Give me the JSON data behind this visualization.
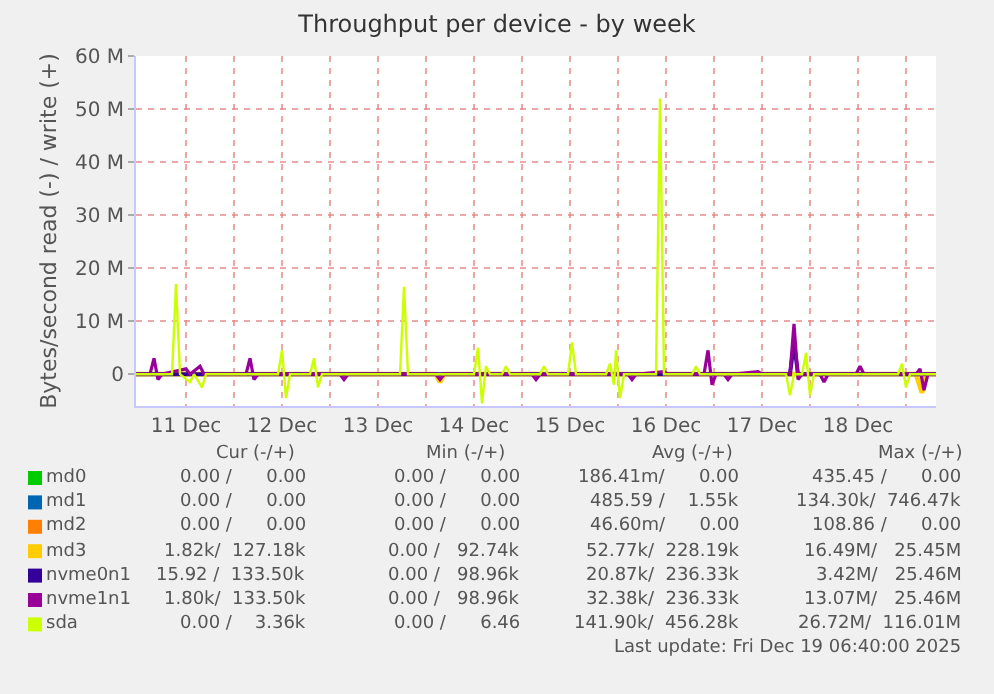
{
  "chart_data": {
    "type": "line",
    "title": "Throughput per device - by week",
    "ylabel": "Bytes/second read (-) / write (+)",
    "xlim": [
      "2025-12-10T23:30",
      "2025-12-19T07:30"
    ],
    "xticks": [
      {
        "value": "2025-12-11T00:00",
        "label": null
      },
      {
        "value": "2025-12-11T12:00",
        "label": "11 Dec"
      },
      {
        "value": "2025-12-12T00:00",
        "label": null
      },
      {
        "value": "2025-12-12T12:00",
        "label": "12 Dec"
      },
      {
        "value": "2025-12-13T00:00",
        "label": null
      },
      {
        "value": "2025-12-13T12:00",
        "label": "13 Dec"
      },
      {
        "value": "2025-12-14T00:00",
        "label": null
      },
      {
        "value": "2025-12-14T12:00",
        "label": "14 Dec"
      },
      {
        "value": "2025-12-15T00:00",
        "label": null
      },
      {
        "value": "2025-12-15T12:00",
        "label": "15 Dec"
      },
      {
        "value": "2025-12-16T00:00",
        "label": null
      },
      {
        "value": "2025-12-16T12:00",
        "label": "16 Dec"
      },
      {
        "value": "2025-12-17T00:00",
        "label": null
      },
      {
        "value": "2025-12-17T12:00",
        "label": "17 Dec"
      },
      {
        "value": "2025-12-18T00:00",
        "label": null
      },
      {
        "value": "2025-12-18T12:00",
        "label": "18 Dec"
      },
      {
        "value": "2025-12-19T00:00",
        "label": null
      }
    ],
    "ylim": [
      -6000000,
      60000000
    ],
    "yticks": [
      {
        "value": 0,
        "label": "0"
      },
      {
        "value": 10000000,
        "label": "10 M"
      },
      {
        "value": 20000000,
        "label": "20 M"
      },
      {
        "value": 30000000,
        "label": "30 M"
      },
      {
        "value": 40000000,
        "label": "40 M"
      },
      {
        "value": 50000000,
        "label": "50 M"
      },
      {
        "value": 60000000,
        "label": "60 M"
      }
    ],
    "grid": true,
    "legend": "bottom left",
    "marker": "none",
    "line_style": "solid",
    "series": [
      {
        "name": "md0",
        "color": "#00cc00"
      },
      {
        "name": "md1",
        "color": "#0066b3"
      },
      {
        "name": "md2",
        "color": "#ff8000"
      },
      {
        "name": "md3",
        "color": "#ffcc00",
        "x": [
          "2025-12-10T23:30",
          "2025-12-14T02:30",
          "2025-12-14T03:30",
          "2025-12-14T04:30",
          "2025-12-19T02:30",
          "2025-12-19T04:00",
          "2025-12-19T05:00",
          "2025-12-19T07:30"
        ],
        "values": [
          0,
          0,
          -1500000,
          0,
          0,
          -3500000,
          0,
          0
        ]
      },
      {
        "name": "nvme0n1",
        "color": "#330099",
        "x": [
          "2025-12-10T23:30",
          "2025-12-17T19:00",
          "2025-12-17T20:00",
          "2025-12-17T21:00",
          "2025-12-19T07:30"
        ],
        "values": [
          0,
          0,
          6000000,
          0,
          0
        ]
      },
      {
        "name": "nvme1n1",
        "color": "#990099",
        "x": [
          "2025-12-10T23:30",
          "2025-12-11T03:00",
          "2025-12-11T04:00",
          "2025-12-11T05:00",
          "2025-12-11T06:00",
          "2025-12-11T12:00",
          "2025-12-11T13:00",
          "2025-12-11T15:30",
          "2025-12-11T16:30",
          "2025-12-12T03:00",
          "2025-12-12T04:00",
          "2025-12-12T05:00",
          "2025-12-12T06:00",
          "2025-12-13T02:30",
          "2025-12-13T03:30",
          "2025-12-13T04:30",
          "2025-12-14T02:30",
          "2025-12-14T03:30",
          "2025-12-14T04:30",
          "2025-12-15T02:30",
          "2025-12-15T03:30",
          "2025-12-15T04:30",
          "2025-12-16T02:30",
          "2025-12-16T03:30",
          "2025-12-16T04:30",
          "2025-12-16T11:30",
          "2025-12-16T12:30",
          "2025-12-16T21:30",
          "2025-12-16T22:30",
          "2025-12-16T23:30",
          "2025-12-17T00:30",
          "2025-12-17T02:30",
          "2025-12-17T03:30",
          "2025-12-17T04:30",
          "2025-12-17T11:00",
          "2025-12-17T12:00",
          "2025-12-17T19:00",
          "2025-12-17T20:00",
          "2025-12-17T21:00",
          "2025-12-17T22:00",
          "2025-12-18T02:30",
          "2025-12-18T03:30",
          "2025-12-18T04:30",
          "2025-12-18T11:30",
          "2025-12-18T12:30",
          "2025-12-18T13:30",
          "2025-12-19T02:30",
          "2025-12-19T03:30",
          "2025-12-19T04:30",
          "2025-12-19T05:30",
          "2025-12-19T07:30"
        ],
        "values": [
          0,
          0,
          3000000,
          -1000000,
          0,
          1000000,
          0,
          1500000,
          0,
          0,
          3000000,
          -1000000,
          0,
          0,
          -1000000,
          0,
          0,
          -1000000,
          0,
          0,
          -1000000,
          0,
          0,
          -1000000,
          0,
          500000,
          0,
          0,
          4500000,
          -2000000,
          0,
          0,
          -1000000,
          0,
          500000,
          0,
          0,
          9500000,
          -1000000,
          0,
          0,
          -1500000,
          0,
          0,
          1500000,
          0,
          0,
          1000000,
          -3000000,
          0,
          0
        ]
      },
      {
        "name": "sda",
        "color": "#ccff00",
        "x": [
          "2025-12-10T23:30",
          "2025-12-11T08:30",
          "2025-12-11T09:30",
          "2025-12-11T10:30",
          "2025-12-11T13:00",
          "2025-12-11T14:00",
          "2025-12-11T16:00",
          "2025-12-11T17:00",
          "2025-12-12T11:00",
          "2025-12-12T12:00",
          "2025-12-12T13:00",
          "2025-12-12T14:00",
          "2025-12-12T19:00",
          "2025-12-12T20:00",
          "2025-12-12T21:00",
          "2025-12-12T22:00",
          "2025-12-13T17:30",
          "2025-12-13T18:30",
          "2025-12-13T19:30",
          "2025-12-14T12:00",
          "2025-12-14T13:00",
          "2025-12-14T14:00",
          "2025-12-14T15:00",
          "2025-12-14T16:00",
          "2025-12-14T19:00",
          "2025-12-14T20:00",
          "2025-12-14T21:00",
          "2025-12-15T04:30",
          "2025-12-15T05:30",
          "2025-12-15T06:30",
          "2025-12-15T11:30",
          "2025-12-15T12:30",
          "2025-12-15T13:30",
          "2025-12-15T21:00",
          "2025-12-15T22:00",
          "2025-12-15T23:00",
          "2025-12-15T23:30",
          "2025-12-16T00:30",
          "2025-12-16T01:30",
          "2025-12-16T09:30",
          "2025-12-16T10:30",
          "2025-12-16T11:30",
          "2025-12-16T18:30",
          "2025-12-16T19:30",
          "2025-12-16T20:30",
          "2025-12-17T18:00",
          "2025-12-17T19:00",
          "2025-12-17T20:00",
          "2025-12-17T22:00",
          "2025-12-17T23:00",
          "2025-12-18T00:00",
          "2025-12-18T01:00",
          "2025-12-18T22:00",
          "2025-12-18T23:00",
          "2025-12-19T00:00",
          "2025-12-19T01:00",
          "2025-12-19T07:30"
        ],
        "values": [
          0,
          0,
          17000000,
          0,
          -1500000,
          0,
          -2500000,
          0,
          0,
          4500000,
          -4500000,
          0,
          0,
          3000000,
          -2500000,
          0,
          0,
          16500000,
          0,
          0,
          5000000,
          -5500000,
          1500000,
          0,
          0,
          1500000,
          0,
          0,
          1500000,
          0,
          0,
          6000000,
          0,
          0,
          2000000,
          -2000000,
          4500000,
          -4500000,
          0,
          0,
          52000000,
          0,
          0,
          1500000,
          0,
          0,
          -4000000,
          0,
          0,
          4000000,
          -4000000,
          0,
          0,
          2000000,
          -2500000,
          0,
          0
        ]
      }
    ],
    "annotations": [
      "Cur (-/+)",
      "Min (-/+)",
      "Avg (-/+)",
      "Max (-/+)",
      "0.00 /      0.00",
      "0.00 /      0.00",
      "186.41m/      0.00",
      "435.45 /      0.00",
      "0.00 /      0.00",
      "0.00 /      0.00",
      "485.59 /    1.55k",
      "134.30k/  746.47k",
      "0.00 /      0.00",
      "0.00 /      0.00",
      "46.60m/      0.00",
      "108.86 /      0.00",
      "1.82k/  127.18k",
      "0.00 /   92.74k",
      "52.77k/  228.19k",
      "16.49M/   25.45M",
      "15.92 /  133.50k",
      "0.00 /   98.96k",
      "20.87k/  236.33k",
      "3.42M/   25.46M",
      "1.80k/  133.50k",
      "0.00 /   98.96k",
      "32.38k/  236.33k",
      "13.07M/   25.46M",
      "0.00 /    3.36k",
      "0.00 /      6.46",
      "141.90k/  456.28k",
      "26.72M/  116.01M",
      "Last update: Fri Dec 19 06:40:00 2025"
    ]
  }
}
